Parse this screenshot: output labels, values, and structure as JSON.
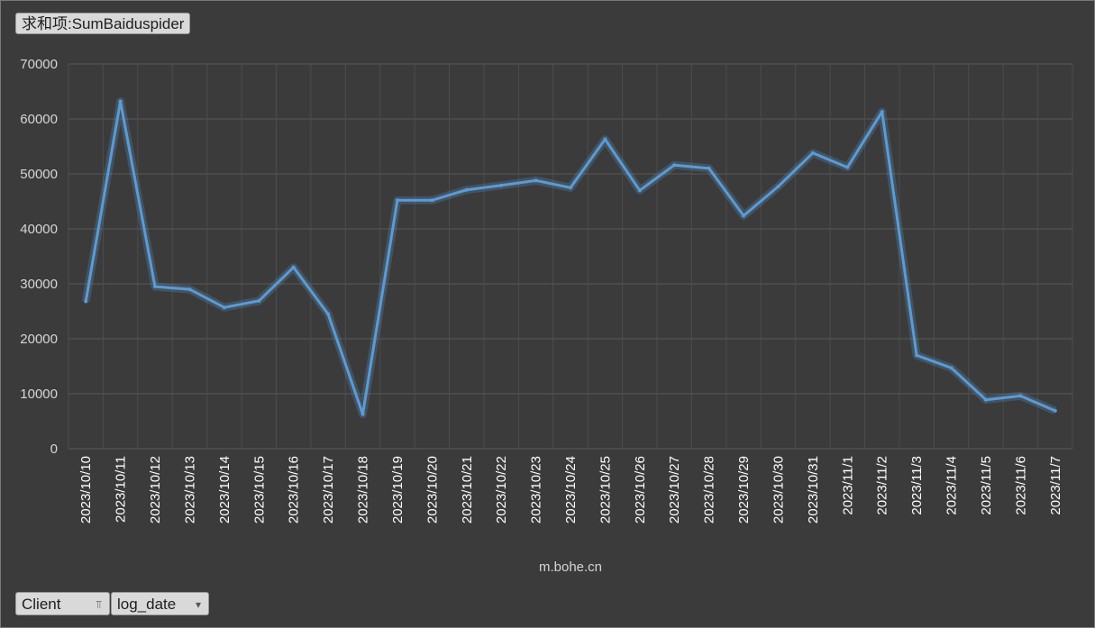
{
  "field_buttons": {
    "value_field": "求和项:SumBaiduspider",
    "filter_field": "Client",
    "axis_field": "log_date"
  },
  "chart_data": {
    "type": "line",
    "title": "",
    "xlabel": "m.bohe.cn",
    "ylabel": "",
    "ylim": [
      0,
      70000
    ],
    "yticks": [
      "0",
      "10000",
      "20000",
      "30000",
      "40000",
      "50000",
      "60000",
      "70000"
    ],
    "grid": true,
    "line_color": "#5b9bd5",
    "categories": [
      "2023/10/10",
      "2023/10/11",
      "2023/10/12",
      "2023/10/13",
      "2023/10/14",
      "2023/10/15",
      "2023/10/16",
      "2023/10/17",
      "2023/10/18",
      "2023/10/19",
      "2023/10/20",
      "2023/10/21",
      "2023/10/22",
      "2023/10/23",
      "2023/10/24",
      "2023/10/25",
      "2023/10/26",
      "2023/10/27",
      "2023/10/28",
      "2023/10/29",
      "2023/10/30",
      "2023/10/31",
      "2023/11/1",
      "2023/11/2",
      "2023/11/3",
      "2023/11/4",
      "2023/11/5",
      "2023/11/6",
      "2023/11/7"
    ],
    "values": [
      26800,
      63200,
      29500,
      29000,
      25700,
      26900,
      33000,
      24500,
      6300,
      45200,
      45200,
      47100,
      47900,
      48800,
      47500,
      56300,
      47000,
      51600,
      51000,
      42400,
      47700,
      53800,
      51200,
      61300,
      17000,
      14700,
      8900,
      9600,
      6900
    ]
  }
}
